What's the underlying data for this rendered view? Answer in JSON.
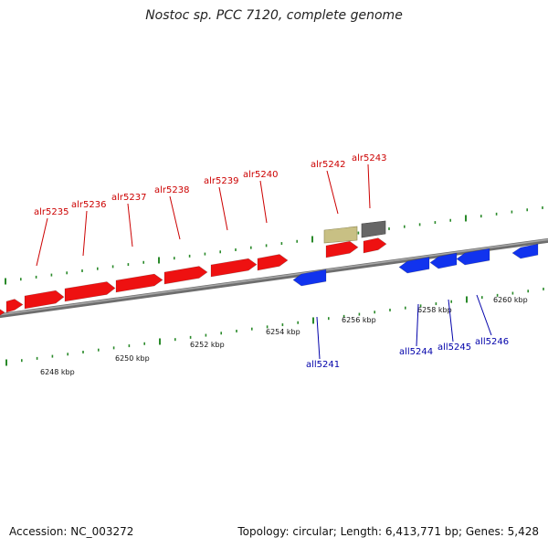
{
  "title": "Nostoc sp. PCC 7120, complete genome",
  "footer": {
    "accession": "Accession: NC_003272",
    "summary": "Topology: circular; Length: 6,413,771 bp; Genes: 5,428"
  },
  "colors": {
    "forward_gene": "#ee1111",
    "reverse_gene": "#1133ee",
    "tan_gene": "#c8c084",
    "gray_gene": "#666666",
    "backbone": "#8a8a8a",
    "tick": "#2a8a2a",
    "label_forward": "#cc0000",
    "label_reverse": "#0000aa"
  },
  "scale": {
    "unit": "kbp",
    "labels": [
      "6248 kbp",
      "6250 kbp",
      "6252 kbp",
      "6254 kbp",
      "6256 kbp",
      "6258 kbp",
      "6260 kbp"
    ]
  },
  "genes_forward": [
    {
      "name": "",
      "strand": "+",
      "color": "red"
    },
    {
      "name": "",
      "strand": "+",
      "color": "red"
    },
    {
      "name": "alr5235",
      "strand": "+",
      "color": "red"
    },
    {
      "name": "alr5236",
      "strand": "+",
      "color": "red"
    },
    {
      "name": "alr5237",
      "strand": "+",
      "color": "red"
    },
    {
      "name": "alr5238",
      "strand": "+",
      "color": "red"
    },
    {
      "name": "alr5239",
      "strand": "+",
      "color": "red"
    },
    {
      "name": "alr5240",
      "strand": "+",
      "color": "red"
    },
    {
      "name": "alr5242",
      "strand": "+",
      "color": "red"
    },
    {
      "name": "alr5243",
      "strand": "+",
      "color": "red"
    }
  ],
  "genes_other": [
    {
      "name": "",
      "kind": "tan"
    },
    {
      "name": "",
      "kind": "gray"
    }
  ],
  "genes_reverse": [
    {
      "name": "all5241",
      "strand": "-",
      "color": "blue"
    },
    {
      "name": "all5244",
      "strand": "-",
      "color": "blue"
    },
    {
      "name": "all5245",
      "strand": "-",
      "color": "blue"
    },
    {
      "name": "all5246",
      "strand": "-",
      "color": "blue"
    },
    {
      "name": "",
      "strand": "-",
      "color": "blue"
    }
  ]
}
